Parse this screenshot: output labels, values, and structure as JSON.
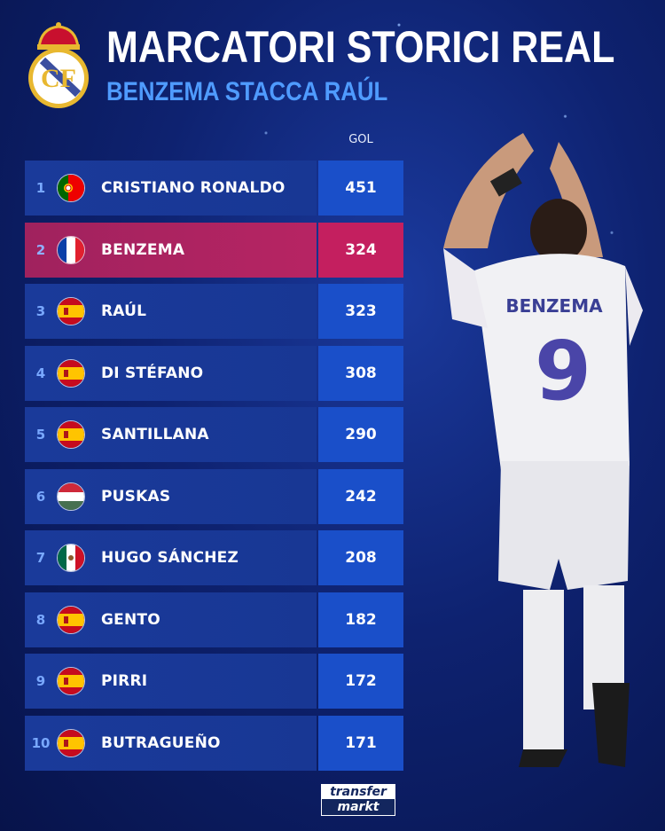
{
  "header": {
    "title": "MARCATORI STORICI REAL",
    "subtitle": "BENZEMA STACCA RAÚL",
    "logo": "real-madrid-crest"
  },
  "chart_data": {
    "type": "table",
    "columns": [
      "",
      "",
      "",
      "GOL"
    ],
    "rows": [
      {
        "rank": "1",
        "flag": "portugal",
        "name": "CRISTIANO RONALDO",
        "goals": "451"
      },
      {
        "rank": "2",
        "flag": "france",
        "name": "BENZEMA",
        "goals": "324",
        "highlight": true
      },
      {
        "rank": "3",
        "flag": "spain",
        "name": "RAÚL",
        "goals": "323"
      },
      {
        "rank": "4",
        "flag": "spain",
        "name": "DI STÉFANO",
        "goals": "308"
      },
      {
        "rank": "5",
        "flag": "spain",
        "name": "SANTILLANA",
        "goals": "290"
      },
      {
        "rank": "6",
        "flag": "hungary",
        "name": "PUSKAS",
        "goals": "242"
      },
      {
        "rank": "7",
        "flag": "mexico",
        "name": "HUGO SÁNCHEZ",
        "goals": "208"
      },
      {
        "rank": "8",
        "flag": "spain",
        "name": "GENTO",
        "goals": "182"
      },
      {
        "rank": "9",
        "flag": "spain",
        "name": "PIRRI",
        "goals": "172"
      },
      {
        "rank": "10",
        "flag": "spain",
        "name": "BUTRAGUEÑO",
        "goals": "171"
      }
    ],
    "highlight_color": "#c41f5f",
    "value_color": "#1a4fc9"
  },
  "player": {
    "shirt_name": "BENZEMA",
    "shirt_number": "9"
  },
  "footer": {
    "brand_line1": "transfer",
    "brand_line2": "markt"
  }
}
